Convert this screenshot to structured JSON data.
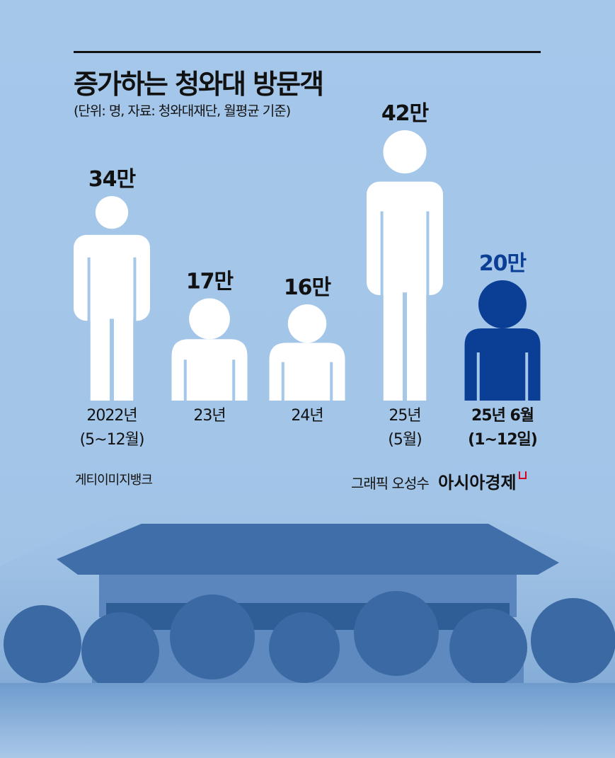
{
  "title": "증가하는 청와대 방문객",
  "subtitle": "(단위: 명, 자료: 청와대재단, 월평균 기준)",
  "credits": {
    "photo": "게티이미지뱅크",
    "graphic": "그래픽 오성수",
    "brand": "아시아경제"
  },
  "colors": {
    "figure": "#ffffff",
    "highlight": "#0b3e95",
    "background": "#a4c7ea",
    "brand_mark": "#d8001c"
  },
  "chart_data": {
    "type": "pictograph",
    "unit": "만",
    "categories": [
      {
        "label": "2022년",
        "sublabel": "(5~12월)"
      },
      {
        "label": "23년",
        "sublabel": ""
      },
      {
        "label": "24년",
        "sublabel": ""
      },
      {
        "label": "25년",
        "sublabel": "(5월)"
      },
      {
        "label": "25년 6월",
        "sublabel": "(1~12일)"
      }
    ],
    "values": [
      34,
      17,
      16,
      42,
      20
    ],
    "value_labels": [
      "34만",
      "17만",
      "16만",
      "42만",
      "20만"
    ],
    "highlighted_index": 4
  }
}
